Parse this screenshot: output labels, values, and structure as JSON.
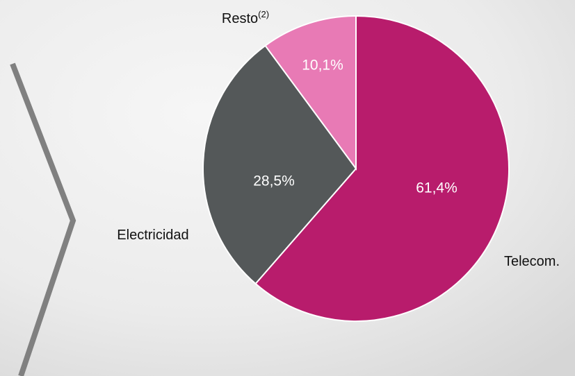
{
  "chart_data": {
    "type": "pie",
    "categories": [
      "Telecom.",
      "Electricidad",
      "Resto"
    ],
    "label_superscripts": [
      null,
      null,
      "(2)"
    ],
    "values": [
      61.4,
      28.5,
      10.1
    ],
    "value_labels": [
      "61,4%",
      "28,5%",
      "10,1%"
    ],
    "colors": [
      "#b81c6c",
      "#545859",
      "#e87ab5"
    ]
  }
}
